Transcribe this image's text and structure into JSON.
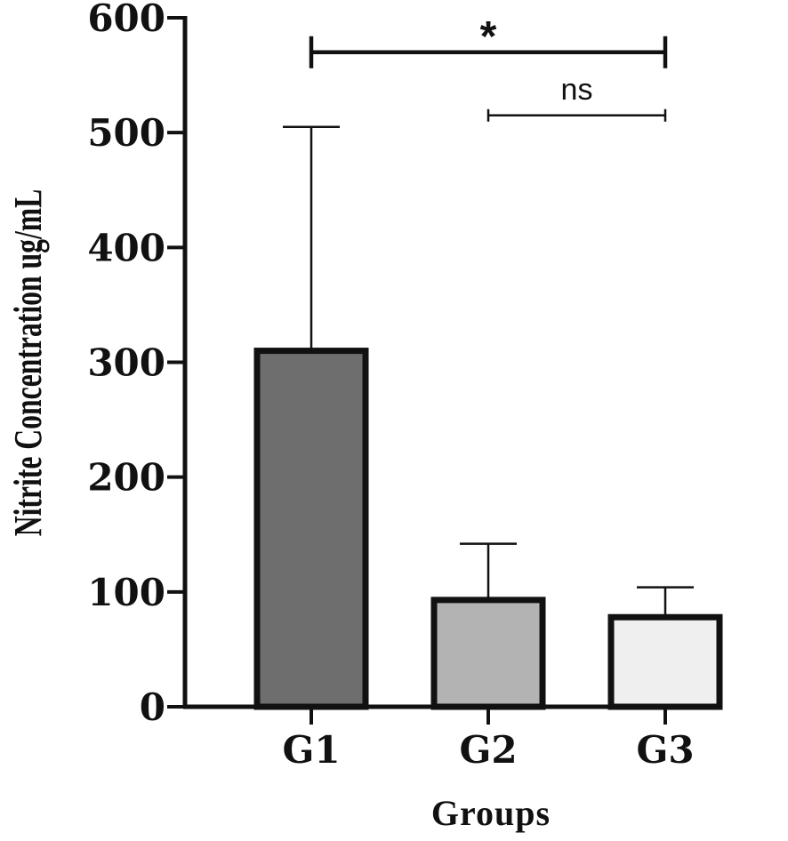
{
  "chart_data": {
    "type": "bar",
    "title": "",
    "xlabel": "Groups",
    "ylabel": "Nitrite Concentration ug/mL",
    "ylim": [
      0,
      600
    ],
    "yticks": [
      0,
      100,
      200,
      300,
      400,
      500,
      600
    ],
    "ytick_labels": [
      "0",
      "100",
      "200",
      "300",
      "400",
      "500",
      "600"
    ],
    "grid": false,
    "categories": [
      "G1",
      "G2",
      "G3"
    ],
    "values": [
      310,
      93,
      78
    ],
    "error_upper": [
      505,
      142,
      104
    ],
    "bar_colors": [
      "#6e6e6e",
      "#b3b3b3",
      "#efefef"
    ],
    "significance": [
      {
        "from": "G1",
        "to": "G3",
        "label": "*",
        "y": 570
      },
      {
        "from": "G2",
        "to": "G3",
        "label": "ns",
        "y": 515
      }
    ]
  }
}
